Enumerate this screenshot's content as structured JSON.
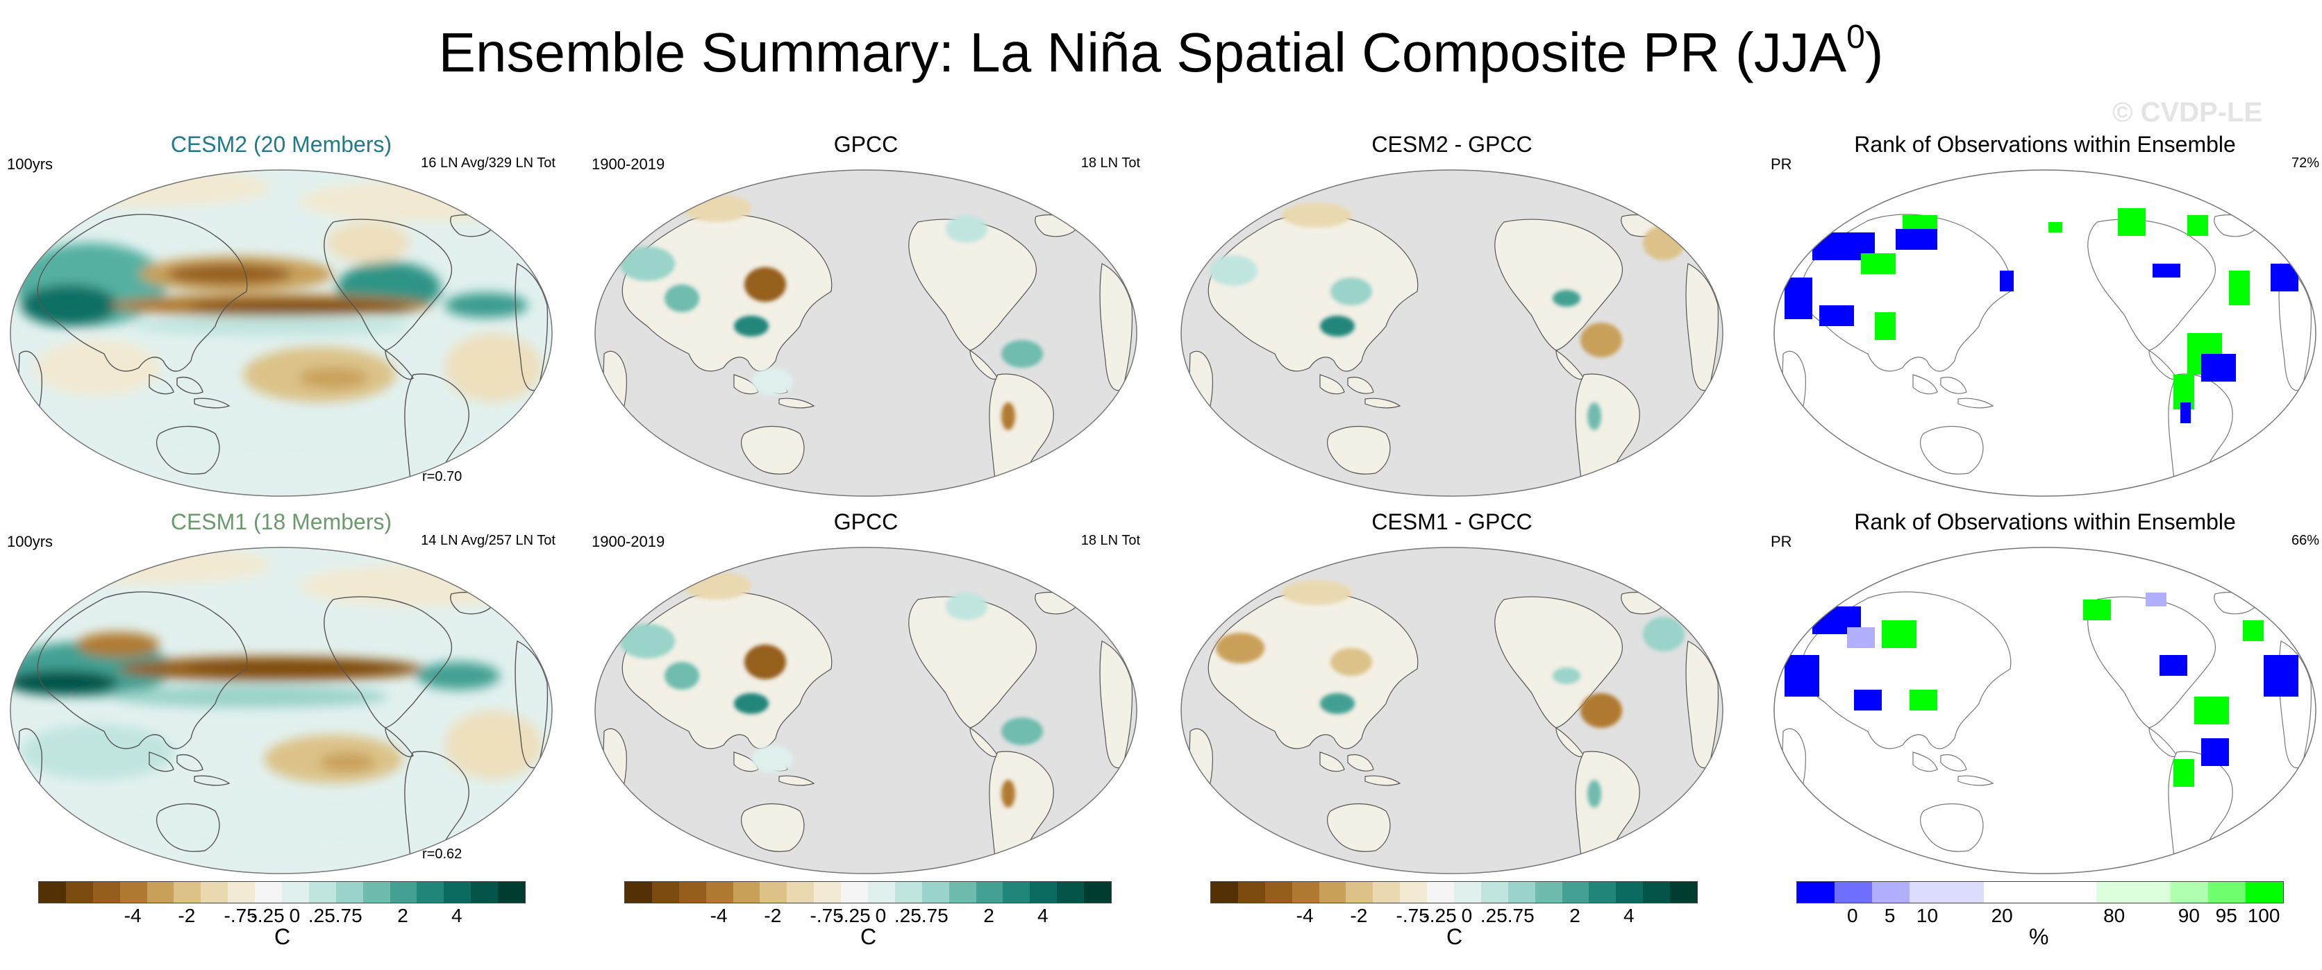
{
  "title_main": "Ensemble Summary: La Niña Spatial Composite PR (JJA",
  "title_sup": "0",
  "title_end": ")",
  "watermark": "© CVDP-LE",
  "panels": {
    "cesm2_ens": {
      "title": "CESM2 (20 Members)",
      "left_text": "100yrs",
      "right_text": "16 LN Avg/329 LN Tot",
      "corr": "r=0.70"
    },
    "gpcc_1": {
      "title": "GPCC",
      "left_text": "1900-2019",
      "right_text": "18 LN Tot"
    },
    "cesm2_diff": {
      "title": "CESM2 - GPCC"
    },
    "rank_1": {
      "title": "Rank of Observations within Ensemble",
      "left_text": "PR",
      "right_text": "72%"
    },
    "cesm1_ens": {
      "title": "CESM1 (18 Members)",
      "left_text": "100yrs",
      "right_text": "14 LN Avg/257 LN Tot",
      "corr": "r=0.62"
    },
    "gpcc_2": {
      "title": "GPCC",
      "left_text": "1900-2019",
      "right_text": "18 LN Tot"
    },
    "cesm1_diff": {
      "title": "CESM1 - GPCC"
    },
    "rank_2": {
      "title": "Rank of Observations within Ensemble",
      "left_text": "PR",
      "right_text": "66%"
    }
  },
  "colorbar_brbg": {
    "colors": [
      "#543005",
      "#7a4a0f",
      "#955e1d",
      "#b07a32",
      "#c9a05a",
      "#dcc288",
      "#ead9b0",
      "#f3ead3",
      "#f5f5f5",
      "#dff0ee",
      "#c0e5df",
      "#9ad3c9",
      "#6fbcaf",
      "#43a093",
      "#21867a",
      "#0b6b60",
      "#045449",
      "#003c30"
    ],
    "ticks": [
      "-4",
      "-2",
      "-.75",
      "-.25",
      "0",
      ".25",
      ".75",
      "2",
      "4"
    ],
    "unit": "C"
  },
  "colorbar_rank": {
    "colors": [
      "#0000ff",
      "#6f6fff",
      "#b0b0ff",
      "#dcdcff",
      "#dcdcff",
      "#ffffff",
      "#ffffff",
      "#ffffff",
      "#dcffdc",
      "#dcffdc",
      "#b0ffb0",
      "#6fff6f",
      "#00ff00"
    ],
    "ticks": [
      "0",
      "5",
      "10",
      "20",
      "80",
      "90",
      "95",
      "100"
    ],
    "unit": "%"
  }
}
